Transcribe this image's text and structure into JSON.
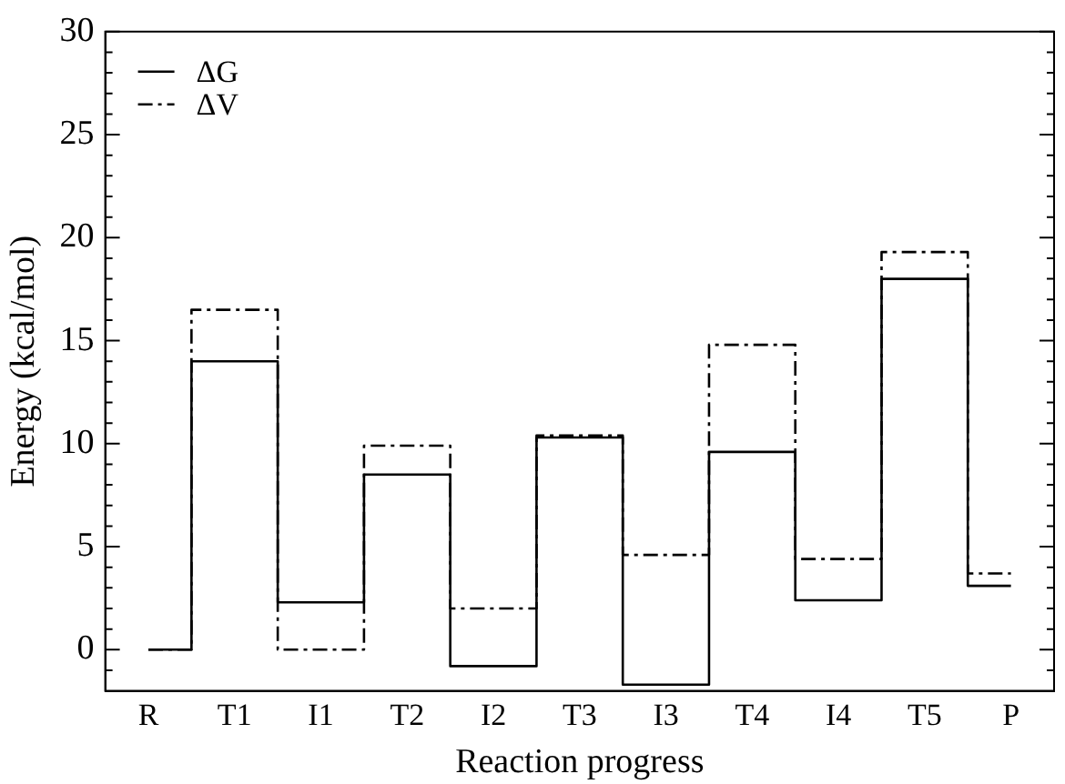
{
  "chart_data": {
    "type": "step",
    "xlabel": "Reaction progress",
    "ylabel": "Energy (kcal/mol)",
    "categories": [
      "R",
      "T1",
      "I1",
      "T2",
      "I2",
      "T3",
      "I3",
      "T4",
      "I4",
      "T5",
      "P"
    ],
    "series": [
      {
        "name": "ΔG",
        "color": "#000000",
        "line_style": "solid",
        "values": [
          0,
          14.0,
          2.3,
          8.5,
          -0.8,
          10.3,
          -1.7,
          9.6,
          2.4,
          18.0,
          3.1
        ]
      },
      {
        "name": "ΔV",
        "color": "#000000",
        "line_style": "dashed",
        "values": [
          0,
          16.5,
          0,
          9.9,
          2.0,
          10.4,
          4.6,
          14.8,
          4.4,
          19.3,
          3.7
        ]
      }
    ],
    "ylim": [
      -2,
      30
    ],
    "yticks": [
      {
        "value": -1,
        "label": null
      },
      0,
      {
        "value": 1,
        "label": null
      },
      {
        "value": 2,
        "label": null
      },
      {
        "value": 3,
        "label": null
      },
      {
        "value": 4,
        "label": null
      },
      5,
      {
        "value": 6,
        "label": null
      },
      {
        "value": 7,
        "label": null
      },
      {
        "value": 8,
        "label": null
      },
      {
        "value": 9,
        "label": null
      },
      10,
      {
        "value": 11,
        "label": null
      },
      {
        "value": 12,
        "label": null
      },
      {
        "value": 13,
        "label": null
      },
      {
        "value": 14,
        "label": null
      },
      15,
      {
        "value": 16,
        "label": null
      },
      {
        "value": 17,
        "label": null
      },
      {
        "value": 18,
        "label": null
      },
      {
        "value": 19,
        "label": null
      },
      20,
      {
        "value": 21,
        "label": null
      },
      {
        "value": 22,
        "label": null
      },
      {
        "value": 23,
        "label": null
      },
      {
        "value": 24,
        "label": null
      },
      25,
      {
        "value": 26,
        "label": null
      },
      {
        "value": 27,
        "label": null
      },
      {
        "value": 28,
        "label": null
      },
      {
        "value": 29,
        "label": null
      },
      30
    ],
    "grid": false,
    "legend": "top left",
    "marker": "none"
  }
}
